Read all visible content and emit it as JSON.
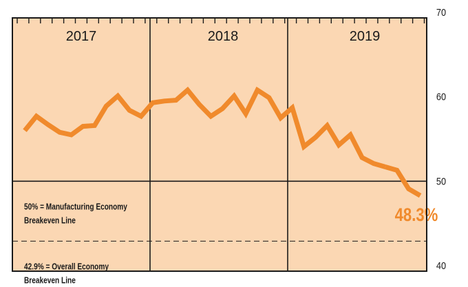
{
  "chart_data": {
    "type": "line",
    "year_labels": [
      "2017",
      "2018",
      "2019"
    ],
    "y_ticks": [
      "70",
      "60",
      "50",
      "40"
    ],
    "ylim": [
      40,
      70
    ],
    "series": [
      {
        "color": "#f08a2c",
        "x": [
          "2017-01",
          "2017-02",
          "2017-03",
          "2017-04",
          "2017-05",
          "2017-06",
          "2017-07",
          "2017-08",
          "2017-09",
          "2017-10",
          "2017-11",
          "2017-12",
          "2018-01",
          "2018-02",
          "2018-03",
          "2018-04",
          "2018-05",
          "2018-06",
          "2018-07",
          "2018-08",
          "2018-09",
          "2018-10",
          "2018-11",
          "2018-12",
          "2019-01",
          "2019-02",
          "2019-03",
          "2019-04",
          "2019-05",
          "2019-06",
          "2019-07",
          "2019-08"
        ],
        "values": [
          56.0,
          57.7,
          56.7,
          55.8,
          55.5,
          56.5,
          56.6,
          58.9,
          60.1,
          58.4,
          57.7,
          59.3,
          59.5,
          59.6,
          60.8,
          59.1,
          57.7,
          58.6,
          60.1,
          58.0,
          60.8,
          59.9,
          57.5,
          58.7,
          54.1,
          55.2,
          56.6,
          54.3,
          55.5,
          52.8,
          52.1,
          51.7
        ]
      },
      {
        "color": "#f08a2c",
        "x": [
          "2019-08",
          "2019-09",
          "2019-10",
          "2019-11"
        ],
        "values": [
          51.7,
          51.3,
          49.1,
          48.3
        ]
      }
    ],
    "reference_lines": [
      {
        "value": 50,
        "style": "solid",
        "label_lines": [
          "50% = Manufacturing Economy",
          "Breakeven Line"
        ]
      },
      {
        "value": 42.9,
        "style": "dashed",
        "label_lines": [
          "42.9% = Overall Economy",
          "Breakeven Line"
        ]
      }
    ],
    "callout": {
      "text": "48.3%",
      "value": 48.3,
      "x": "2019-11"
    },
    "grid": false,
    "colors": {
      "background": "#fbd7b3",
      "line": "#f08a2c",
      "axis": "#1a1a1a"
    }
  }
}
